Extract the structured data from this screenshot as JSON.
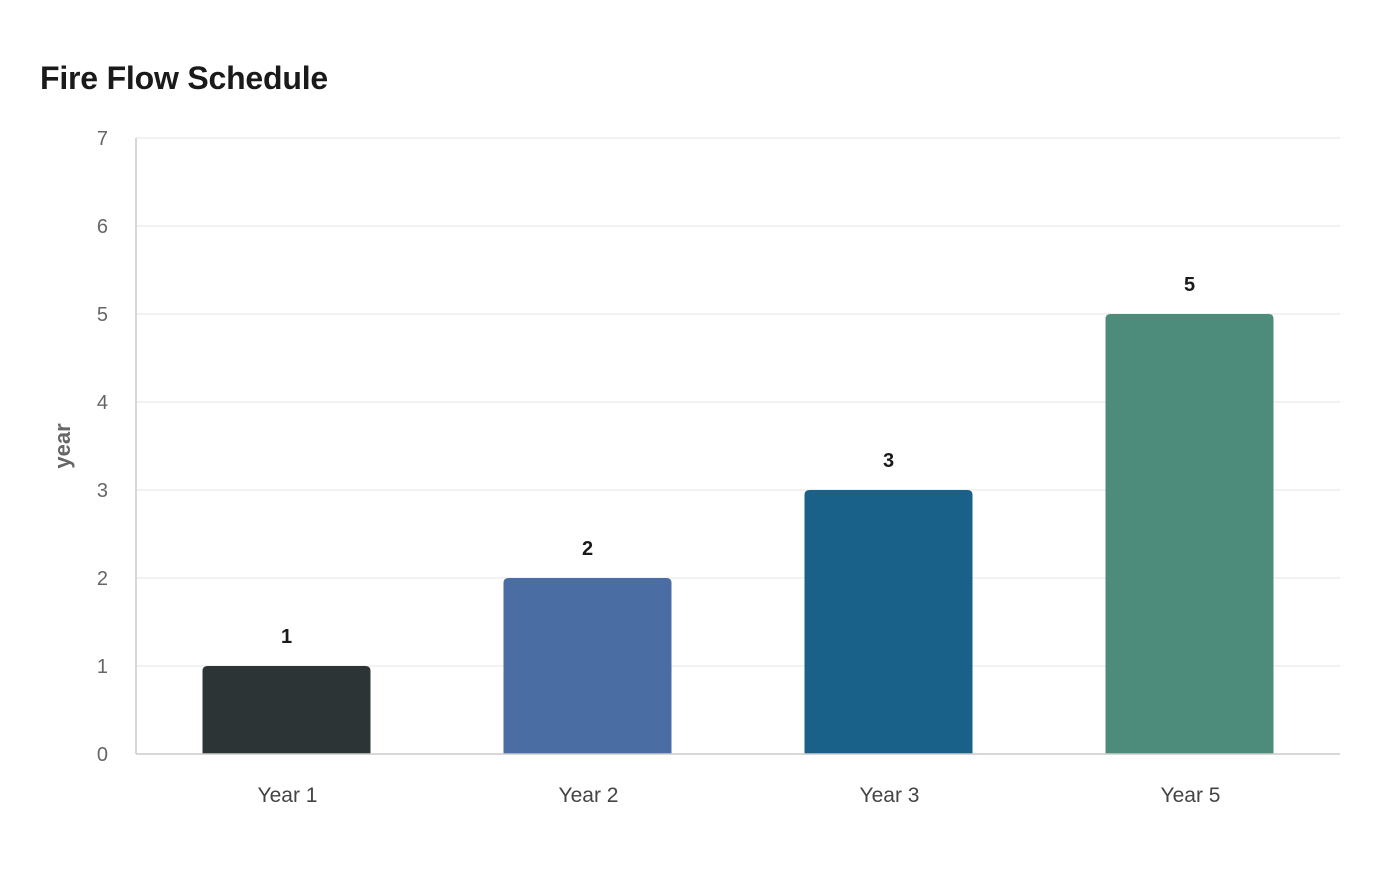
{
  "chart_data": {
    "type": "bar",
    "title": "Fire Flow Schedule",
    "xlabel": "",
    "ylabel": "year",
    "categories": [
      "Year 1",
      "Year 2",
      "Year 3",
      "Year 5"
    ],
    "values": [
      1,
      2,
      3,
      5
    ],
    "data_labels": [
      "1",
      "2",
      "3",
      "5"
    ],
    "ylim": [
      0,
      7
    ],
    "yticks": [
      0,
      1,
      2,
      3,
      4,
      5,
      6,
      7
    ],
    "bar_colors": [
      "#2d3436",
      "#4a6da3",
      "#1a6189",
      "#4d8c7a"
    ],
    "grid": true,
    "legend": "none"
  }
}
